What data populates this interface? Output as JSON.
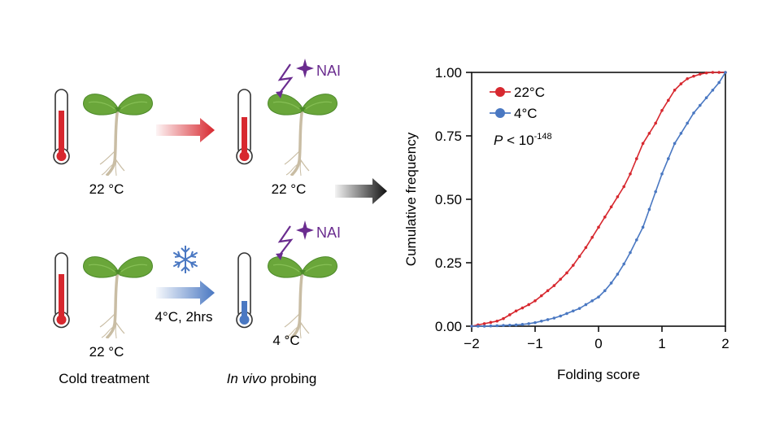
{
  "panel_left": {
    "row_top": {
      "start_temp": "22 °C",
      "end_temp": "22 °C",
      "reagent": "NAI"
    },
    "row_bottom": {
      "start_temp": "22 °C",
      "condition": "4°C, 2hrs",
      "end_temp": "4 °C",
      "reagent": "NAI"
    },
    "captions": {
      "cold_treatment": "Cold treatment",
      "probing_italic": "In vivo",
      "probing_rest": " probing"
    },
    "icons": [
      "thermometer-icon",
      "seedling-icon",
      "lightning-icon",
      "sparkle-icon",
      "snowflake-icon",
      "arrow-icon"
    ],
    "colors": {
      "warm": "#d7282f",
      "cold": "#4a78c2",
      "leaf": "#6aa63a",
      "reagent": "#6a2c8f",
      "stem": "#c9bda4"
    }
  },
  "chart_data": {
    "type": "line",
    "xlabel": "Folding score",
    "ylabel": "Cumulative frequency",
    "xlim": [
      -2,
      2
    ],
    "ylim": [
      0,
      1
    ],
    "x_ticks": [
      "−2",
      "−1",
      "0",
      "1",
      "2"
    ],
    "y_ticks": [
      "0.00",
      "0.25",
      "0.50",
      "0.75",
      "1.00"
    ],
    "x_tick_values": [
      -2,
      -1,
      0,
      1,
      2
    ],
    "y_tick_values": [
      0,
      0.25,
      0.5,
      0.75,
      1
    ],
    "annotation": {
      "p_italic": "P",
      "p_text": " < 10",
      "p_exp": "-148"
    },
    "legend_position": "top-left",
    "series": [
      {
        "name": "22°C",
        "color": "#d7282f",
        "x": [
          -2.0,
          -1.9,
          -1.8,
          -1.7,
          -1.6,
          -1.5,
          -1.4,
          -1.3,
          -1.2,
          -1.1,
          -1.0,
          -0.9,
          -0.8,
          -0.7,
          -0.6,
          -0.5,
          -0.4,
          -0.3,
          -0.2,
          -0.1,
          0.0,
          0.1,
          0.2,
          0.3,
          0.4,
          0.5,
          0.6,
          0.7,
          0.8,
          0.9,
          1.0,
          1.1,
          1.2,
          1.3,
          1.4,
          1.5,
          1.6,
          1.7,
          1.8,
          1.9,
          2.0
        ],
        "y": [
          0.0,
          0.005,
          0.01,
          0.015,
          0.02,
          0.03,
          0.045,
          0.06,
          0.072,
          0.085,
          0.1,
          0.12,
          0.14,
          0.16,
          0.185,
          0.21,
          0.24,
          0.275,
          0.31,
          0.35,
          0.39,
          0.43,
          0.47,
          0.51,
          0.55,
          0.6,
          0.66,
          0.72,
          0.76,
          0.8,
          0.85,
          0.89,
          0.93,
          0.955,
          0.975,
          0.985,
          0.993,
          0.998,
          1.0,
          1.0,
          1.0
        ]
      },
      {
        "name": "4°C",
        "color": "#4a78c2",
        "x": [
          -2.0,
          -1.9,
          -1.8,
          -1.7,
          -1.6,
          -1.5,
          -1.4,
          -1.3,
          -1.2,
          -1.1,
          -1.0,
          -0.9,
          -0.8,
          -0.7,
          -0.6,
          -0.5,
          -0.4,
          -0.3,
          -0.2,
          -0.1,
          0.0,
          0.1,
          0.2,
          0.3,
          0.4,
          0.5,
          0.6,
          0.7,
          0.8,
          0.9,
          1.0,
          1.1,
          1.2,
          1.3,
          1.4,
          1.5,
          1.6,
          1.7,
          1.8,
          1.9,
          2.0
        ],
        "y": [
          0.0,
          0.0,
          0.0,
          0.001,
          0.002,
          0.003,
          0.004,
          0.005,
          0.007,
          0.01,
          0.014,
          0.02,
          0.026,
          0.032,
          0.04,
          0.05,
          0.06,
          0.07,
          0.085,
          0.1,
          0.115,
          0.14,
          0.17,
          0.205,
          0.245,
          0.29,
          0.34,
          0.39,
          0.46,
          0.53,
          0.6,
          0.66,
          0.72,
          0.76,
          0.8,
          0.84,
          0.87,
          0.9,
          0.93,
          0.96,
          1.0
        ]
      }
    ]
  }
}
